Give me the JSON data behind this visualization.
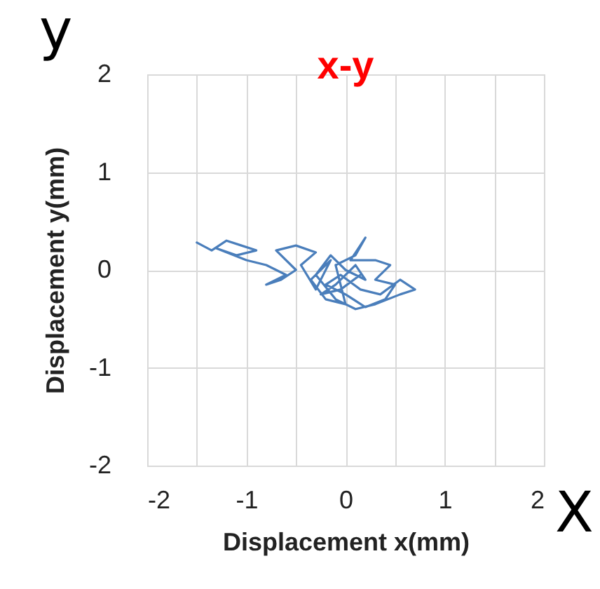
{
  "chart_data": {
    "type": "line",
    "title": "x-y",
    "xlabel": "Displacement x(mm)",
    "ylabel": "Displacement y(mm)",
    "annotations": [
      "y",
      "X"
    ],
    "xlim": [
      -2,
      2
    ],
    "ylim": [
      -2,
      2
    ],
    "xticks": [
      -2,
      {
        "value": -1.5,
        "label": null
      },
      -1,
      {
        "value": -0.5,
        "label": null
      },
      0,
      {
        "value": 0.5,
        "label": null
      },
      1,
      {
        "value": 1.5,
        "label": null
      },
      2
    ],
    "yticks": [
      -2,
      -1,
      0,
      1,
      2
    ],
    "grid": true,
    "marker": "none",
    "series": [
      {
        "color": "#4a7ebb",
        "x": [
          -1.5,
          -1.35,
          -1.2,
          -1.05,
          -0.9,
          -1.1,
          -1.3,
          -1.0,
          -0.8,
          -0.6,
          -0.8,
          -0.65,
          -0.5,
          -0.7,
          -0.5,
          -0.3,
          -0.45,
          -0.3,
          -0.15,
          -0.35,
          -0.2,
          0.0,
          -0.1,
          0.1,
          0.2,
          0.05,
          0.3,
          0.45,
          0.3,
          0.5,
          0.4,
          0.2,
          0.0,
          -0.2,
          -0.05,
          0.15,
          0.35,
          0.55,
          0.7,
          0.55,
          0.3,
          0.1,
          -0.1,
          -0.3,
          -0.15,
          0.0,
          0.2,
          0.1,
          -0.1,
          -0.25,
          -0.05,
          0.15
        ],
        "values": [
          0.28,
          0.2,
          0.3,
          0.25,
          0.2,
          0.15,
          0.22,
          0.1,
          0.05,
          -0.05,
          -0.15,
          -0.1,
          0.0,
          0.2,
          0.25,
          0.18,
          0.05,
          -0.2,
          0.1,
          -0.1,
          -0.3,
          -0.35,
          0.05,
          0.15,
          0.33,
          0.1,
          0.1,
          0.05,
          -0.1,
          -0.15,
          -0.3,
          -0.38,
          -0.25,
          -0.15,
          -0.05,
          -0.2,
          -0.25,
          -0.1,
          -0.2,
          -0.25,
          -0.35,
          -0.4,
          -0.3,
          -0.05,
          0.15,
          0.0,
          -0.1,
          0.05,
          -0.15,
          -0.25,
          -0.2,
          -0.05
        ]
      }
    ]
  }
}
